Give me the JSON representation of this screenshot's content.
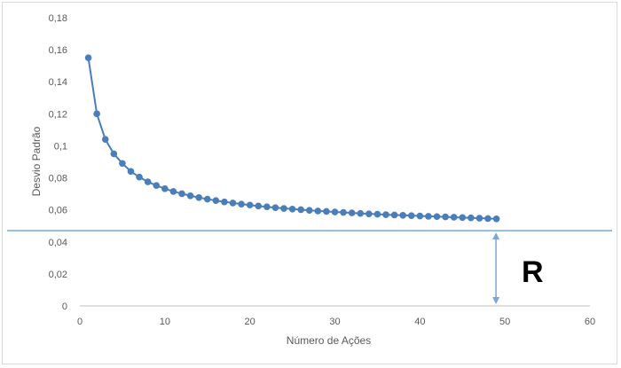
{
  "chart_data": {
    "type": "line",
    "xlabel": "Número de Ações",
    "ylabel": "Desvio Padrão",
    "xlim": [
      0,
      60
    ],
    "ylim": [
      0,
      0.18
    ],
    "x_ticks": [
      "0",
      "10",
      "20",
      "30",
      "40",
      "50",
      "60"
    ],
    "y_ticks": [
      "0",
      "0,02",
      "0,04",
      "0,06",
      "0,08",
      "0,1",
      "0,12",
      "0,14",
      "0,16",
      "0,18"
    ],
    "grid": false,
    "legend": "none",
    "series": [
      {
        "color": "#4a7ebb",
        "x": [
          1,
          2,
          3,
          4,
          5,
          6,
          7,
          8,
          9,
          10,
          11,
          12,
          13,
          14,
          15,
          16,
          17,
          18,
          19,
          20,
          21,
          22,
          23,
          24,
          25,
          26,
          27,
          28,
          29,
          30,
          31,
          32,
          33,
          34,
          35,
          36,
          37,
          38,
          39,
          40,
          41,
          42,
          43,
          44,
          45,
          46,
          47,
          48,
          49
        ],
        "y": [
          0.155,
          0.12,
          0.104,
          0.095,
          0.089,
          0.084,
          0.0805,
          0.0775,
          0.0752,
          0.0732,
          0.0715,
          0.0701,
          0.0688,
          0.0677,
          0.0667,
          0.0658,
          0.065,
          0.0643,
          0.0636,
          0.063,
          0.0624,
          0.0619,
          0.0614,
          0.0609,
          0.0605,
          0.0601,
          0.0597,
          0.0593,
          0.059,
          0.0587,
          0.0584,
          0.0581,
          0.0578,
          0.0575,
          0.0573,
          0.057,
          0.0568,
          0.0566,
          0.0564,
          0.0562,
          0.056,
          0.0558,
          0.0556,
          0.0554,
          0.0552,
          0.055,
          0.0548,
          0.0546,
          0.0544
        ]
      }
    ],
    "asymptote": {
      "y": 0.047,
      "color": "#7aa7d6"
    },
    "annotation": {
      "text": "R",
      "arrow_x": 49
    }
  }
}
